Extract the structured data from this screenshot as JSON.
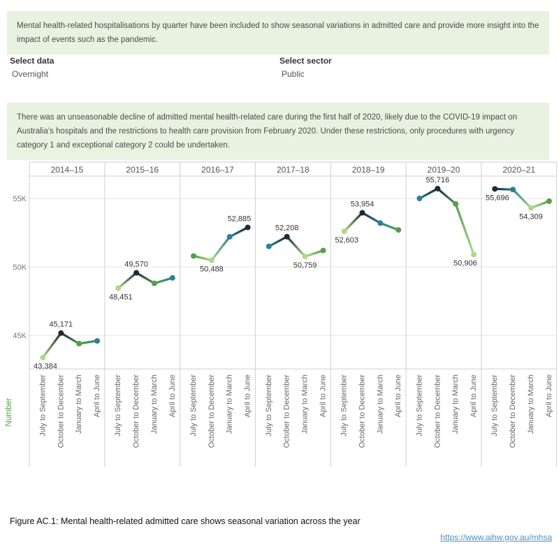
{
  "intro_banner": {
    "text": "Mental health-related hospitalisations by quarter have been included to show seasonal variations in admitted care and provide more insight into the impact of events such as the pandemic."
  },
  "filters": [
    {
      "label": "Select data",
      "value": "Overnight"
    },
    {
      "label": "Select sector",
      "value": "Public"
    }
  ],
  "note_banner": {
    "text": "There was an unseasonable decline of admitted mental health-related care during the first half of 2020, likely due to the COVID-19 impact on Australia’s hospitals and the restrictions to health care provision from February 2020. Under these restrictions, only procedures with urgency category 1 and exceptional category 2 could be undertaken."
  },
  "chart_data": {
    "type": "line",
    "title": "",
    "ylabel": "Number",
    "ylabel_color": "#4f9d45",
    "grid": true,
    "ylim": [
      42500,
      56600
    ],
    "y_ticks": [
      {
        "label": "45K",
        "value": 45000
      },
      {
        "label": "50K",
        "value": 50000
      },
      {
        "label": "55K",
        "value": 55000
      }
    ],
    "quarters": [
      "July to September",
      "October to December",
      "January to March",
      "April to June"
    ],
    "color_encoding": "rank of quarter value within each year: lowest = light green, highest = dark navy",
    "rank_palette": [
      "#b0d889",
      "#54a04a",
      "#2d8191",
      "#1b2c37"
    ],
    "series": [
      {
        "year": "2014–15",
        "points": [
          {
            "quarter": "July to September",
            "value": 43384,
            "label": "43,384",
            "label_pos": "below"
          },
          {
            "quarter": "October to December",
            "value": 45171,
            "label": "45,171",
            "label_pos": "above"
          },
          {
            "quarter": "January to March",
            "value": 44400
          },
          {
            "quarter": "April to June",
            "value": 44600
          }
        ]
      },
      {
        "year": "2015–16",
        "points": [
          {
            "quarter": "July to September",
            "value": 48451,
            "label": "48,451",
            "label_pos": "below"
          },
          {
            "quarter": "October to December",
            "value": 49570,
            "label": "49,570",
            "label_pos": "above"
          },
          {
            "quarter": "January to March",
            "value": 48800
          },
          {
            "quarter": "April to June",
            "value": 49200
          }
        ]
      },
      {
        "year": "2016–17",
        "points": [
          {
            "quarter": "July to September",
            "value": 50800
          },
          {
            "quarter": "October to December",
            "value": 50488,
            "label": "50,488",
            "label_pos": "below"
          },
          {
            "quarter": "January to March",
            "value": 52200
          },
          {
            "quarter": "April to June",
            "value": 52885,
            "label": "52,885",
            "label_pos": "above"
          }
        ]
      },
      {
        "year": "2017–18",
        "points": [
          {
            "quarter": "July to September",
            "value": 51500
          },
          {
            "quarter": "October to December",
            "value": 52208,
            "label": "52,208",
            "label_pos": "above"
          },
          {
            "quarter": "January to March",
            "value": 50759,
            "label": "50,759",
            "label_pos": "below"
          },
          {
            "quarter": "April to June",
            "value": 51200
          }
        ]
      },
      {
        "year": "2018–19",
        "points": [
          {
            "quarter": "July to September",
            "value": 52603,
            "label": "52,603",
            "label_pos": "below"
          },
          {
            "quarter": "October to December",
            "value": 53954,
            "label": "53,954",
            "label_pos": "above"
          },
          {
            "quarter": "January to March",
            "value": 53200
          },
          {
            "quarter": "April to June",
            "value": 52700
          }
        ]
      },
      {
        "year": "2019–20",
        "points": [
          {
            "quarter": "July to September",
            "value": 55000
          },
          {
            "quarter": "October to December",
            "value": 55716,
            "label": "55,716",
            "label_pos": "above"
          },
          {
            "quarter": "January to March",
            "value": 54600
          },
          {
            "quarter": "April to June",
            "value": 50906,
            "label": "50,906",
            "label_pos": "below"
          }
        ]
      },
      {
        "year": "2020–21",
        "points": [
          {
            "quarter": "July to September",
            "value": 55696,
            "label": "55,696",
            "label_pos": "below"
          },
          {
            "quarter": "October to December",
            "value": 55650
          },
          {
            "quarter": "January to March",
            "value": 54309,
            "label": "54,309",
            "label_pos": "below"
          },
          {
            "quarter": "April to June",
            "value": 54800
          }
        ]
      }
    ]
  },
  "caption": "Figure AC.1: Mental health-related admitted care shows seasonal variation across the year",
  "link": "https://www.aihw.gov.au/mhsa",
  "colors": {
    "banner_bg": "#e9f2e0",
    "link_blue": "#4a90c4",
    "grid": "#e5e5e5",
    "border": "#cfcfcf",
    "divider": "#d0d0d0",
    "tick_text": "#777777",
    "header_text": "#555555",
    "value_label": "#333333"
  }
}
